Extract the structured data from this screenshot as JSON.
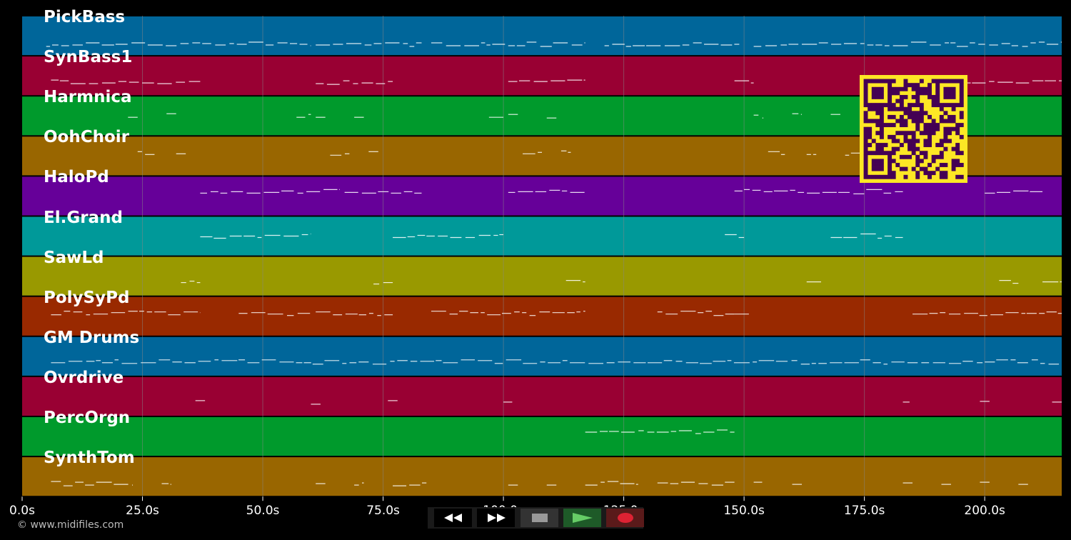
{
  "tracks": [
    {
      "name": "PickBass",
      "color": "#00669a"
    },
    {
      "name": "SynBass1",
      "color": "#990033"
    },
    {
      "name": "Harmnica",
      "color": "#009a2c"
    },
    {
      "name": "OohChoir",
      "color": "#996600"
    },
    {
      "name": "HaloPd",
      "color": "#660099"
    },
    {
      "name": "El.Grand",
      "color": "#009999"
    },
    {
      "name": "SawLd",
      "color": "#999900"
    },
    {
      "name": "PolySyPd",
      "color": "#992900"
    },
    {
      "name": "GM Drums",
      "color": "#00669a"
    },
    {
      "name": "Ovrdrive",
      "color": "#990033"
    },
    {
      "name": "PercOrgn",
      "color": "#009a2c"
    },
    {
      "name": "SynthTom",
      "color": "#996600"
    }
  ],
  "timeline": {
    "start_seconds": 0,
    "end_seconds": 216,
    "ticks": [
      {
        "value": 0,
        "label": "0.0s"
      },
      {
        "value": 25,
        "label": "25.0s"
      },
      {
        "value": 50,
        "label": "50.0s"
      },
      {
        "value": 75,
        "label": "75.0s"
      },
      {
        "value": 100,
        "label": "100.0s"
      },
      {
        "value": 125,
        "label": "125.0s"
      },
      {
        "value": 150,
        "label": "150.0s"
      },
      {
        "value": 175,
        "label": "175.0s"
      },
      {
        "value": 200,
        "label": "200.0s"
      }
    ]
  },
  "copyright": "© www.midifiles.com",
  "transport": {
    "rewind_icon": "rewind-icon",
    "fast_forward_icon": "fast-forward-icon",
    "stop_icon": "stop-icon",
    "play_icon": "play-icon",
    "record_icon": "record-icon"
  },
  "colors": {
    "background": "#000000",
    "note": "#ffffff",
    "gridline": "#888888",
    "qr_light": "#fde725",
    "qr_dark": "#440154",
    "play_green": "#66cc66",
    "record_red": "#dd2233"
  }
}
